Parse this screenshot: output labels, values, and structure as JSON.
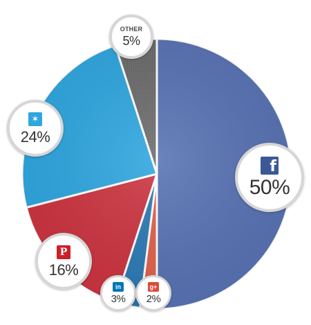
{
  "chart_data": {
    "type": "pie",
    "start_angle_deg": 0,
    "direction": "clockwise",
    "slices": [
      {
        "name": "Facebook",
        "icon": "facebook-icon",
        "value": 50,
        "label": "50%",
        "color": "#5873b4"
      },
      {
        "name": "Google+",
        "icon": "google-plus-icon",
        "value": 2,
        "label": "2%",
        "color": "#e0614a"
      },
      {
        "name": "LinkedIn",
        "icon": "linkedin-icon",
        "value": 3,
        "label": "3%",
        "color": "#2c7ab4"
      },
      {
        "name": "Pinterest",
        "icon": "pinterest-icon",
        "value": 16,
        "label": "16%",
        "color": "#cc3440"
      },
      {
        "name": "Twitter",
        "icon": "twitter-icon",
        "value": 24,
        "label": "24%",
        "color": "#2fa6df"
      },
      {
        "name": "OTHER",
        "icon": "",
        "value": 5,
        "label": "5%",
        "color": "#6e6e6e"
      }
    ]
  }
}
